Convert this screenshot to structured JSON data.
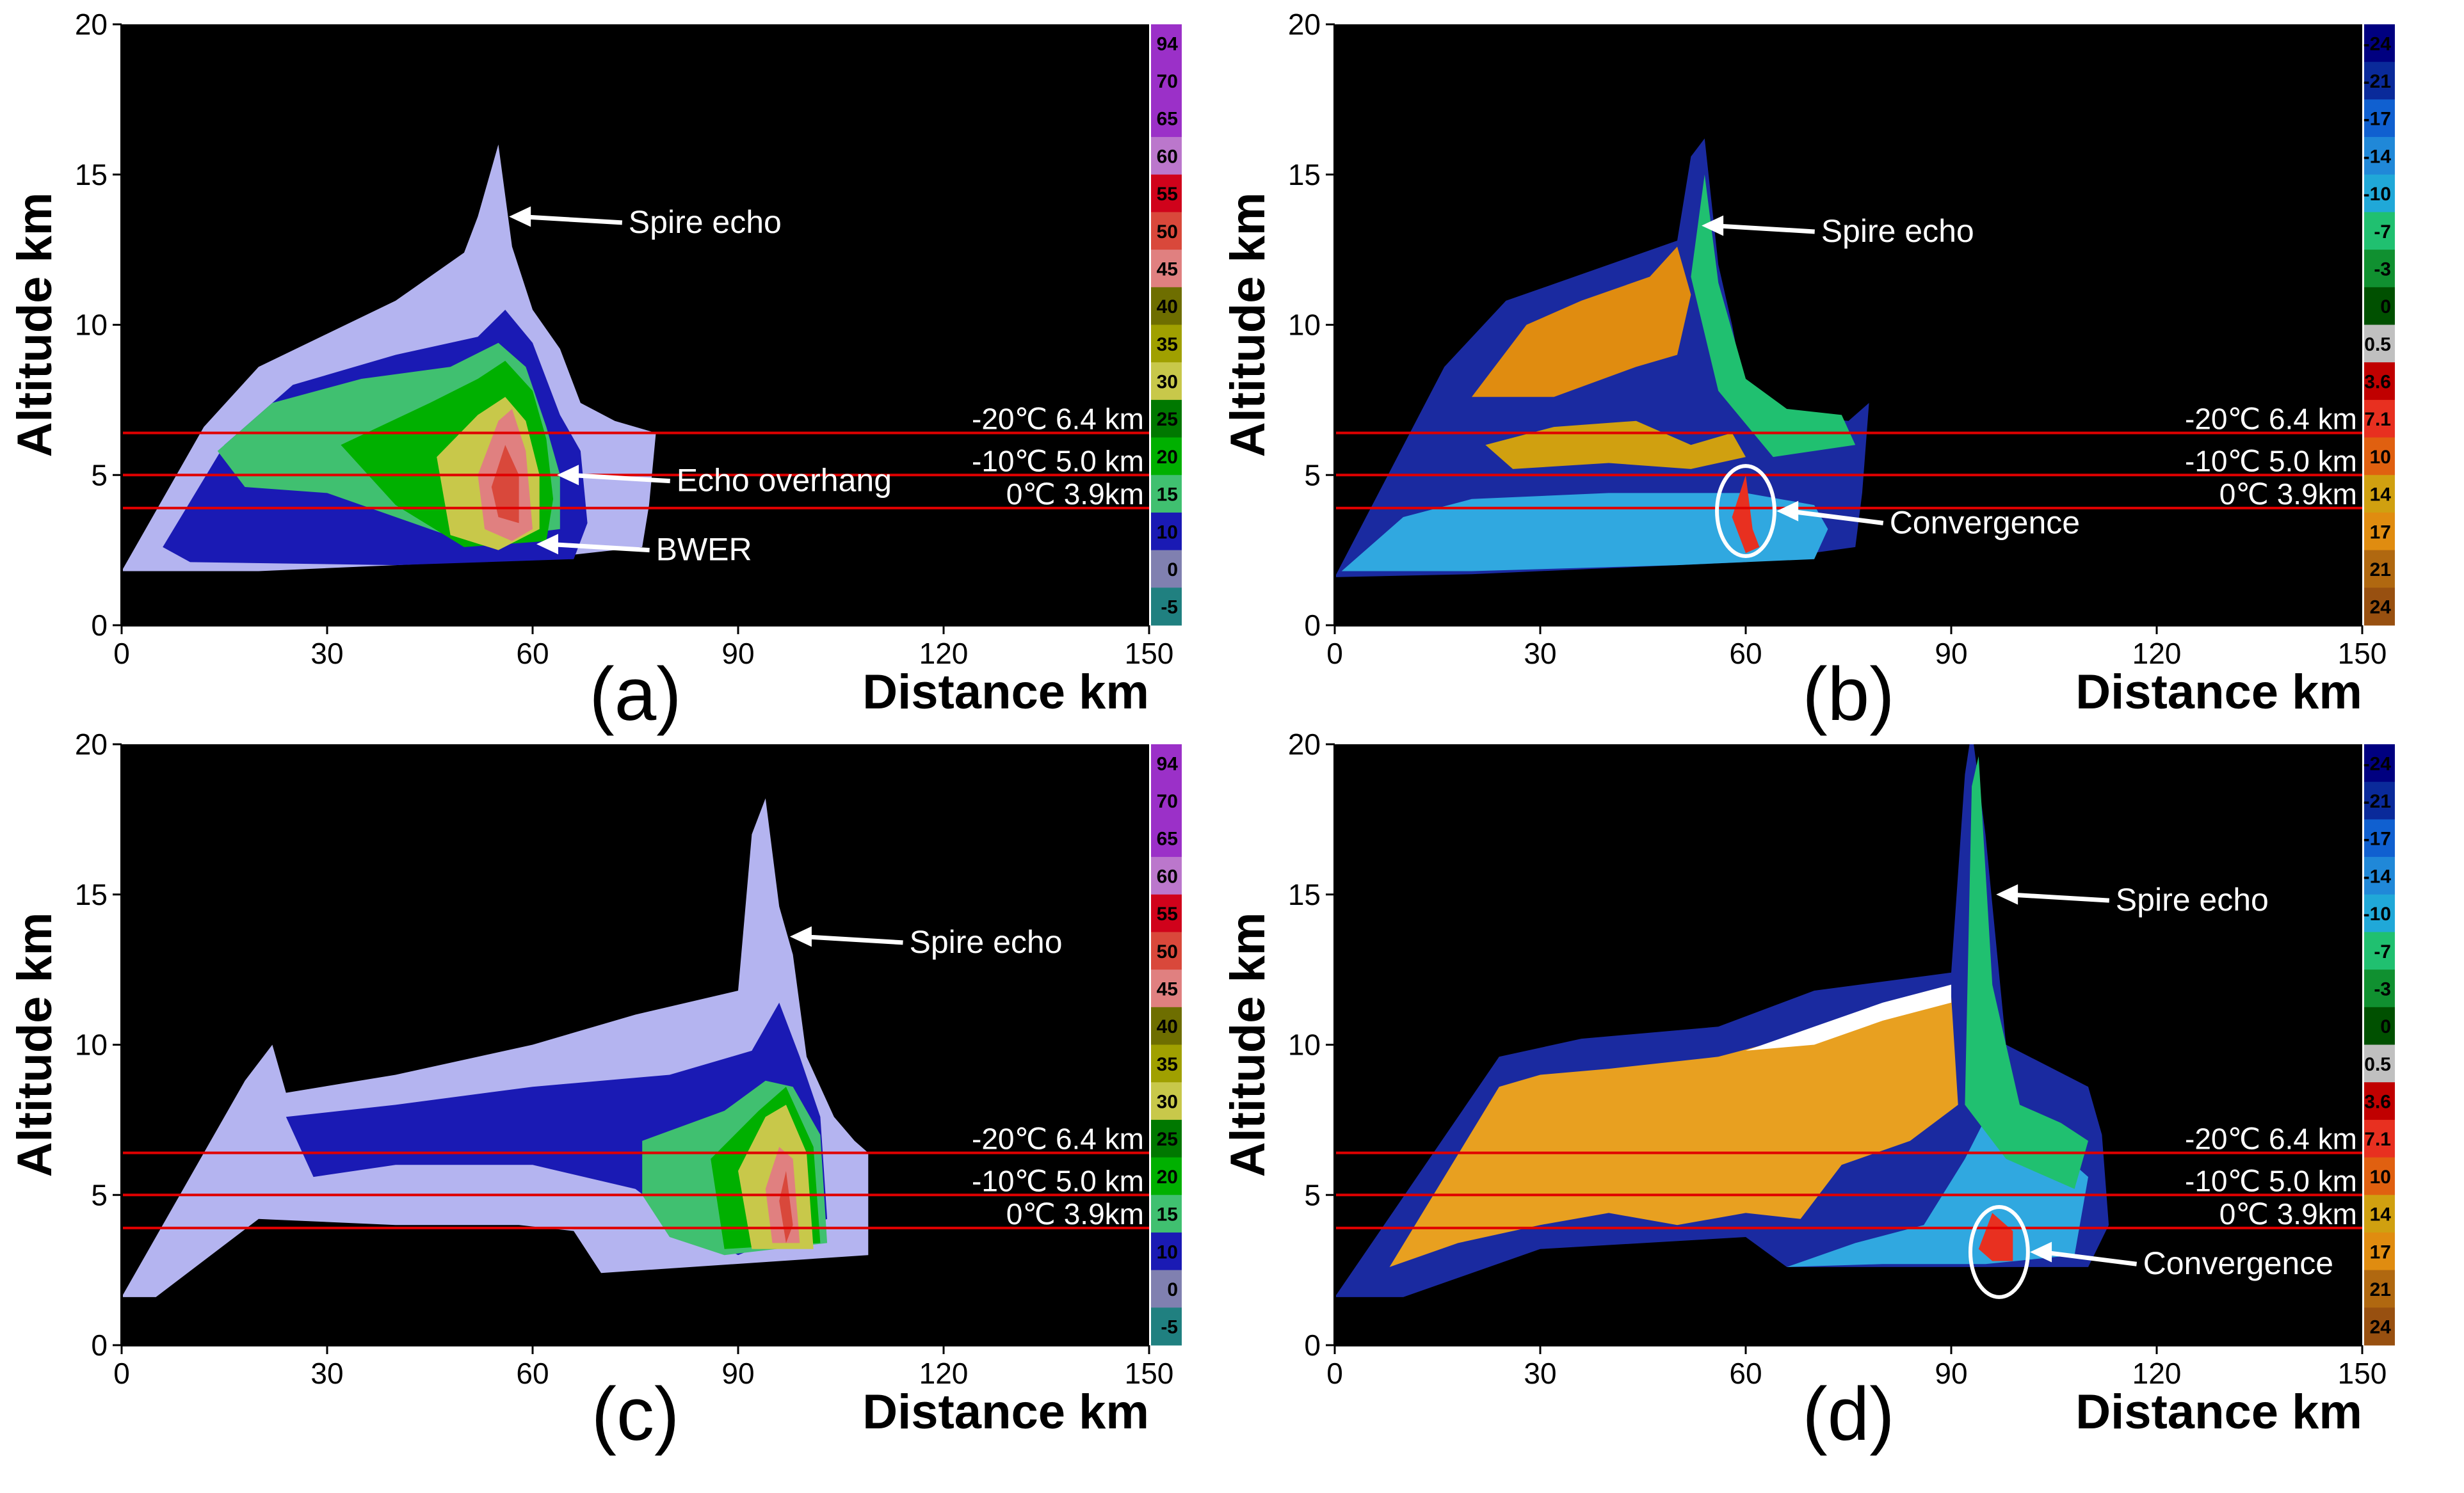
{
  "chart_data": [
    {
      "panel": "a",
      "type": "heatmap",
      "product": "reflectivity",
      "panel_label": "(a)",
      "xlabel": "Distance km",
      "ylabel": "Altitude km",
      "xlim": [
        0,
        150
      ],
      "ylim": [
        0,
        20
      ],
      "xticks": [
        "0",
        "30",
        "60",
        "90",
        "120",
        "150"
      ],
      "yticks": [
        "0",
        "5",
        "10",
        "15",
        "20"
      ],
      "isotherms": [
        {
          "label": "-20℃  6.4 km",
          "altitude_km": 6.4
        },
        {
          "label": "-10℃  5.0 km",
          "altitude_km": 5.0
        },
        {
          "label": "0℃  3.9km",
          "altitude_km": 3.9
        }
      ],
      "colorbar": {
        "labels": [
          "94",
          "70",
          "65",
          "60",
          "55",
          "50",
          "45",
          "40",
          "35",
          "30",
          "25",
          "20",
          "15",
          "10",
          "0",
          "-5"
        ],
        "colors": [
          "#9b30c8",
          "#9b30c8",
          "#9b30c8",
          "#bb77cc",
          "#d0021b",
          "#d9483b",
          "#e08080",
          "#6e6e00",
          "#a0a000",
          "#c8c84a",
          "#007800",
          "#00b000",
          "#40c070",
          "#1a1ab4",
          "#8080b0",
          "#208080"
        ]
      },
      "annotations": [
        {
          "text": "Spire echo",
          "x": 56,
          "y": 13.6
        },
        {
          "text": "Echo overhang",
          "x": 63,
          "y": 5.0
        },
        {
          "text": "BWER",
          "x": 60,
          "y": 2.7
        }
      ]
    },
    {
      "panel": "b",
      "type": "heatmap",
      "product": "velocity",
      "panel_label": "(b)",
      "xlabel": "Distance km",
      "ylabel": "Altitude km",
      "xlim": [
        0,
        150
      ],
      "ylim": [
        0,
        20
      ],
      "xticks": [
        "0",
        "30",
        "60",
        "90",
        "120",
        "150"
      ],
      "yticks": [
        "0",
        "5",
        "10",
        "15",
        "20"
      ],
      "isotherms": [
        {
          "label": "-20℃  6.4 km",
          "altitude_km": 6.4
        },
        {
          "label": "-10℃  5.0 km",
          "altitude_km": 5.0
        },
        {
          "label": "0℃  3.9km",
          "altitude_km": 3.9
        }
      ],
      "colorbar": {
        "labels": [
          "-24",
          "-21",
          "-17",
          "-14",
          "-10",
          "-7",
          "-3",
          "0",
          "0.5",
          "3.6",
          "7.1",
          "10",
          "14",
          "17",
          "21",
          "24"
        ],
        "colors": [
          "#000080",
          "#0a2a9a",
          "#1060d0",
          "#2088d8",
          "#20a8d8",
          "#20c070",
          "#109030",
          "#005000",
          "#c0c0c0",
          "#c00000",
          "#e83020",
          "#e06010",
          "#d0a010",
          "#e08c10",
          "#b06810",
          "#985010"
        ]
      },
      "annotations": [
        {
          "text": "Spire echo",
          "x": 53,
          "y": 13.3
        },
        {
          "text": "Convergence",
          "x": 60,
          "y": 3.8
        }
      ]
    },
    {
      "panel": "c",
      "type": "heatmap",
      "product": "reflectivity",
      "panel_label": "(c)",
      "xlabel": "Distance km",
      "ylabel": "Altitude km",
      "xlim": [
        0,
        150
      ],
      "ylim": [
        0,
        20
      ],
      "xticks": [
        "0",
        "30",
        "60",
        "90",
        "120",
        "150"
      ],
      "yticks": [
        "0",
        "5",
        "10",
        "15",
        "20"
      ],
      "isotherms": [
        {
          "label": "-20℃  6.4 km",
          "altitude_km": 6.4
        },
        {
          "label": "-10℃  5.0 km",
          "altitude_km": 5.0
        },
        {
          "label": "0℃  3.9km",
          "altitude_km": 3.9
        }
      ],
      "colorbar": {
        "labels": [
          "94",
          "70",
          "65",
          "60",
          "55",
          "50",
          "45",
          "40",
          "35",
          "30",
          "25",
          "20",
          "15",
          "10",
          "0",
          "-5"
        ],
        "colors": [
          "#9b30c8",
          "#9b30c8",
          "#9b30c8",
          "#bb77cc",
          "#d0021b",
          "#d9483b",
          "#e08080",
          "#6e6e00",
          "#a0a000",
          "#c8c84a",
          "#007800",
          "#00b000",
          "#40c070",
          "#1a1ab4",
          "#8080b0",
          "#208080"
        ]
      },
      "annotations": [
        {
          "text": "Spire echo",
          "x": 97,
          "y": 13.6
        }
      ]
    },
    {
      "panel": "d",
      "type": "heatmap",
      "product": "velocity",
      "panel_label": "(d)",
      "xlabel": "Distance km",
      "ylabel": "Altitude km",
      "xlim": [
        0,
        150
      ],
      "ylim": [
        0,
        20
      ],
      "xticks": [
        "0",
        "30",
        "60",
        "90",
        "120",
        "150"
      ],
      "yticks": [
        "0",
        "5",
        "10",
        "15",
        "20"
      ],
      "isotherms": [
        {
          "label": "-20℃  6.4 km",
          "altitude_km": 6.4
        },
        {
          "label": "-10℃  5.0 km",
          "altitude_km": 5.0
        },
        {
          "label": "0℃  3.9km",
          "altitude_km": 3.9
        }
      ],
      "colorbar": {
        "labels": [
          "-24",
          "-21",
          "-17",
          "-14",
          "-10",
          "-7",
          "-3",
          "0",
          "0.5",
          "3.6",
          "7.1",
          "10",
          "14",
          "17",
          "21",
          "24"
        ],
        "colors": [
          "#000080",
          "#0a2a9a",
          "#1060d0",
          "#2088d8",
          "#20a8d8",
          "#20c070",
          "#109030",
          "#005000",
          "#c0c0c0",
          "#c00000",
          "#e83020",
          "#e06010",
          "#d0a010",
          "#e08c10",
          "#b06810",
          "#985010"
        ]
      },
      "annotations": [
        {
          "text": "Spire echo",
          "x": 96,
          "y": 15.0
        },
        {
          "text": "Convergence",
          "x": 97,
          "y": 3.1
        }
      ]
    }
  ]
}
